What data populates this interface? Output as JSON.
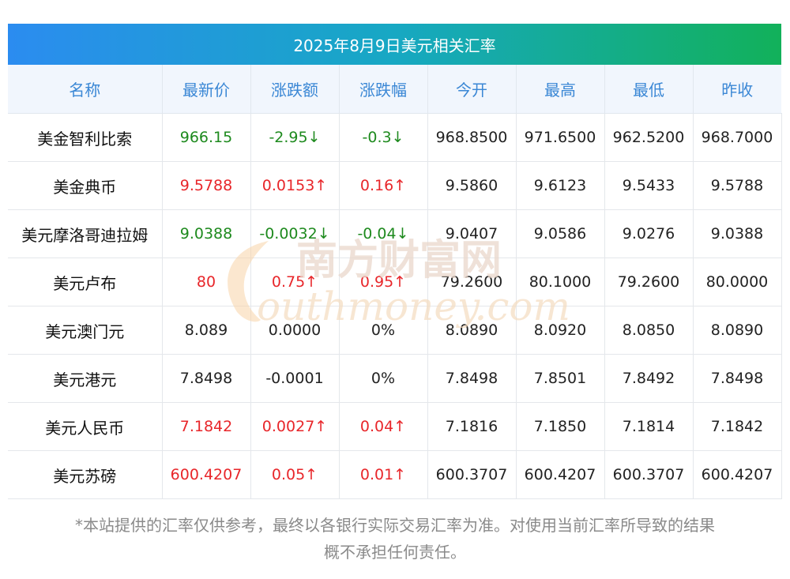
{
  "title": "2025年8月9日美元相关汇率",
  "headers": [
    "名称",
    "最新价",
    "涨跌额",
    "涨跌幅",
    "今开",
    "最高",
    "最低",
    "昨收"
  ],
  "rows": [
    {
      "name": "美金智利比索",
      "latest": "966.15",
      "change": "-2.95↓",
      "pct": "-0.3↓",
      "open": "968.8500",
      "high": "971.6500",
      "low": "962.5200",
      "prev": "968.7000",
      "trend": "down"
    },
    {
      "name": "美金典币",
      "latest": "9.5788",
      "change": "0.0153↑",
      "pct": "0.16↑",
      "open": "9.5860",
      "high": "9.6123",
      "low": "9.5433",
      "prev": "9.5788",
      "trend": "up"
    },
    {
      "name": "美元摩洛哥迪拉姆",
      "latest": "9.0388",
      "change": "-0.0032↓",
      "pct": "-0.04↓",
      "open": "9.0407",
      "high": "9.0586",
      "low": "9.0276",
      "prev": "9.0388",
      "trend": "down"
    },
    {
      "name": "美元卢布",
      "latest": "80",
      "change": "0.75↑",
      "pct": "0.95↑",
      "open": "79.2600",
      "high": "80.1000",
      "low": "79.2600",
      "prev": "80.0000",
      "trend": "up"
    },
    {
      "name": "美元澳门元",
      "latest": "8.089",
      "change": "0.0000",
      "pct": "0%",
      "open": "8.0890",
      "high": "8.0920",
      "low": "8.0850",
      "prev": "8.0890",
      "trend": "flat"
    },
    {
      "name": "美元港元",
      "latest": "7.8498",
      "change": "-0.0001",
      "pct": "0%",
      "open": "7.8498",
      "high": "7.8501",
      "low": "7.8492",
      "prev": "7.8498",
      "trend": "flat"
    },
    {
      "name": "美元人民币",
      "latest": "7.1842",
      "change": "0.0027↑",
      "pct": "0.04↑",
      "open": "7.1816",
      "high": "7.1850",
      "low": "7.1814",
      "prev": "7.1842",
      "trend": "up"
    },
    {
      "name": "美元苏磅",
      "latest": "600.4207",
      "change": "0.05↑",
      "pct": "0.01↑",
      "open": "600.3707",
      "high": "600.4207",
      "low": "600.3707",
      "prev": "600.4207",
      "trend": "up"
    }
  ],
  "watermark": {
    "cn": "南方财富网",
    "en": "outhmoney.com"
  },
  "note": {
    "line1": "*本站提供的汇率仅供参考，最终以各银行实际交易汇率为准。对使用当前汇率所导致的结果",
    "line2": "概不承担任何责任。"
  },
  "colors": {
    "up": "#e8262a",
    "down": "#1e8a1e",
    "header_text": "#3a87d5",
    "title_start": "#2b8cf0",
    "title_end": "#12b15a"
  }
}
